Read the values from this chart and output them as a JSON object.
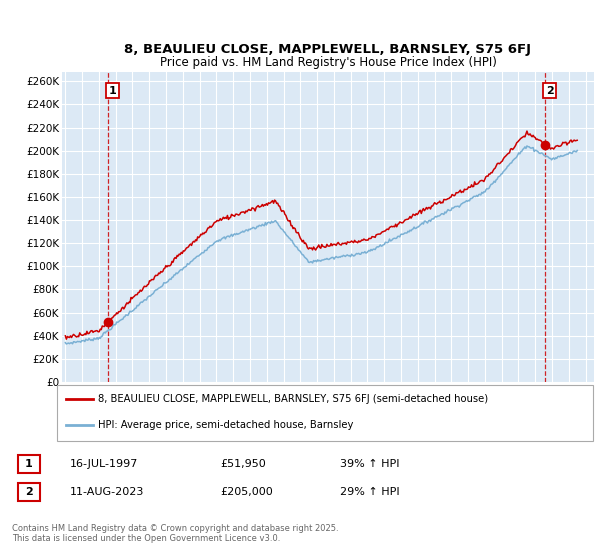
{
  "title": "8, BEAULIEU CLOSE, MAPPLEWELL, BARNSLEY, S75 6FJ",
  "subtitle": "Price paid vs. HM Land Registry's House Price Index (HPI)",
  "ylabel_ticks": [
    "£0",
    "£20K",
    "£40K",
    "£60K",
    "£80K",
    "£100K",
    "£120K",
    "£140K",
    "£160K",
    "£180K",
    "£200K",
    "£220K",
    "£240K",
    "£260K"
  ],
  "ytick_vals": [
    0,
    20000,
    40000,
    60000,
    80000,
    100000,
    120000,
    140000,
    160000,
    180000,
    200000,
    220000,
    240000,
    260000
  ],
  "ylim": [
    0,
    268000
  ],
  "xlim_start": 1994.8,
  "xlim_end": 2026.5,
  "sale1_year": 1997.54,
  "sale1_price": 51950,
  "sale1_date": "16-JUL-1997",
  "sale1_hpi": "39% ↑ HPI",
  "sale2_year": 2023.61,
  "sale2_price": 205000,
  "sale2_date": "11-AUG-2023",
  "sale2_hpi": "29% ↑ HPI",
  "red_line_color": "#cc0000",
  "blue_line_color": "#7ab0d4",
  "plot_bg_color": "#dce9f5",
  "grid_color": "#ffffff",
  "title_fontsize": 9.5,
  "subtitle_fontsize": 8.5,
  "legend_label1": "8, BEAULIEU CLOSE, MAPPLEWELL, BARNSLEY, S75 6FJ (semi-detached house)",
  "legend_label2": "HPI: Average price, semi-detached house, Barnsley",
  "footer": "Contains HM Land Registry data © Crown copyright and database right 2025.\nThis data is licensed under the Open Government Licence v3.0."
}
